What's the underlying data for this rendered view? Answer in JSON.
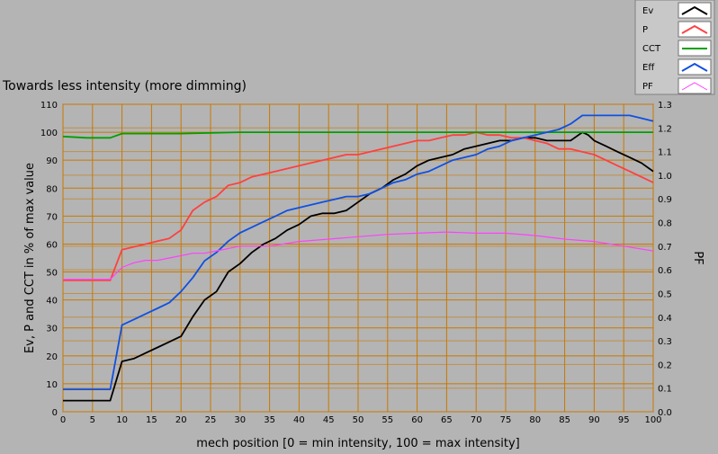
{
  "chart_data": {
    "type": "line",
    "title": "Towards less intensity (more dimming)",
    "xlabel": "mech position [0 = min intensity, 100 = max intensity]",
    "ylabel": "Ev, P and CCT in % of max value",
    "y2label": "PF",
    "xlim": [
      0,
      100
    ],
    "ylim": [
      0,
      110
    ],
    "y2lim": [
      0,
      1.3
    ],
    "grid": true,
    "legend_position": "top-right",
    "x_ticks": [
      0,
      5,
      10,
      15,
      20,
      25,
      30,
      35,
      40,
      45,
      50,
      55,
      60,
      65,
      70,
      75,
      80,
      85,
      90,
      95,
      100
    ],
    "y_ticks": [
      0,
      10,
      20,
      30,
      40,
      50,
      60,
      70,
      80,
      90,
      100,
      110
    ],
    "y2_ticks": [
      "0.0",
      "0.1",
      "0.2",
      "0.3",
      "0.4",
      "0.5",
      "0.6",
      "0.7",
      "0.8",
      "0.9",
      "1.0",
      "1.1",
      "1.2",
      "1.3"
    ],
    "series": [
      {
        "name": "Ev",
        "color": "#000000",
        "axis": "left",
        "x": [
          0,
          2,
          4,
          6,
          8,
          10,
          12,
          14,
          16,
          18,
          20,
          22,
          24,
          26,
          28,
          30,
          32,
          34,
          36,
          38,
          40,
          42,
          44,
          46,
          48,
          50,
          52,
          54,
          56,
          58,
          60,
          62,
          64,
          66,
          68,
          70,
          72,
          74,
          76,
          78,
          80,
          82,
          84,
          86,
          88,
          89,
          90,
          92,
          94,
          96,
          98,
          100
        ],
        "y": [
          4,
          4,
          4,
          4,
          4,
          18,
          19,
          21,
          23,
          25,
          27,
          34,
          40,
          43,
          50,
          53,
          57,
          60,
          62,
          65,
          67,
          70,
          71,
          71,
          72,
          75,
          78,
          80,
          83,
          85,
          88,
          90,
          91,
          92,
          94,
          95,
          96,
          97,
          97,
          98,
          98,
          97,
          97,
          97,
          100,
          99,
          97,
          95,
          93,
          91,
          89,
          86
        ]
      },
      {
        "name": "P",
        "color": "#ff4040",
        "axis": "left",
        "x": [
          0,
          2,
          4,
          6,
          8,
          10,
          12,
          14,
          16,
          18,
          20,
          22,
          24,
          26,
          28,
          30,
          32,
          34,
          36,
          38,
          40,
          42,
          44,
          46,
          48,
          50,
          52,
          54,
          56,
          58,
          60,
          62,
          64,
          66,
          68,
          70,
          72,
          74,
          76,
          78,
          80,
          82,
          84,
          86,
          88,
          90,
          92,
          94,
          96,
          98,
          100
        ],
        "y": [
          47,
          47,
          47,
          47,
          47,
          58,
          59,
          60,
          61,
          62,
          65,
          72,
          75,
          77,
          81,
          82,
          84,
          85,
          86,
          87,
          88,
          89,
          90,
          91,
          92,
          92,
          93,
          94,
          95,
          96,
          97,
          97,
          98,
          99,
          99,
          100,
          99,
          99,
          98,
          98,
          97,
          96,
          94,
          94,
          93,
          92,
          90,
          88,
          86,
          84,
          82
        ]
      },
      {
        "name": "CCT",
        "color": "#00a000",
        "axis": "left",
        "x": [
          0,
          4,
          8,
          10,
          20,
          30,
          40,
          50,
          60,
          70,
          80,
          90,
          100
        ],
        "y": [
          98.5,
          98,
          98,
          99.5,
          99.5,
          100,
          100,
          100,
          100,
          100,
          100,
          100,
          100
        ]
      },
      {
        "name": "Eff",
        "color": "#1050e0",
        "axis": "left",
        "x": [
          0,
          2,
          4,
          6,
          8,
          10,
          12,
          14,
          16,
          18,
          20,
          22,
          24,
          26,
          28,
          30,
          32,
          34,
          36,
          38,
          40,
          42,
          44,
          46,
          48,
          50,
          52,
          54,
          56,
          58,
          60,
          62,
          64,
          66,
          68,
          70,
          72,
          74,
          76,
          78,
          80,
          82,
          84,
          86,
          88,
          90,
          92,
          94,
          96,
          98,
          100
        ],
        "y": [
          8,
          8,
          8,
          8,
          8,
          31,
          33,
          35,
          37,
          39,
          43,
          48,
          54,
          57,
          61,
          64,
          66,
          68,
          70,
          72,
          73,
          74,
          75,
          76,
          77,
          77,
          78,
          80,
          82,
          83,
          85,
          86,
          88,
          90,
          91,
          92,
          94,
          95,
          97,
          98,
          99,
          100,
          101,
          103,
          106,
          106,
          106,
          106,
          106,
          105,
          104
        ]
      },
      {
        "name": "PF",
        "color": "#ff40ff",
        "axis": "right",
        "x": [
          0,
          2,
          4,
          6,
          8,
          10,
          12,
          14,
          16,
          18,
          20,
          22,
          24,
          26,
          28,
          30,
          35,
          40,
          45,
          50,
          55,
          60,
          65,
          70,
          75,
          80,
          85,
          90,
          95,
          100
        ],
        "y": [
          0.56,
          0.56,
          0.56,
          0.56,
          0.56,
          0.61,
          0.63,
          0.64,
          0.64,
          0.65,
          0.66,
          0.67,
          0.67,
          0.68,
          0.69,
          0.7,
          0.7,
          0.72,
          0.73,
          0.74,
          0.75,
          0.755,
          0.76,
          0.755,
          0.755,
          0.745,
          0.73,
          0.72,
          0.7,
          0.68
        ]
      }
    ]
  }
}
